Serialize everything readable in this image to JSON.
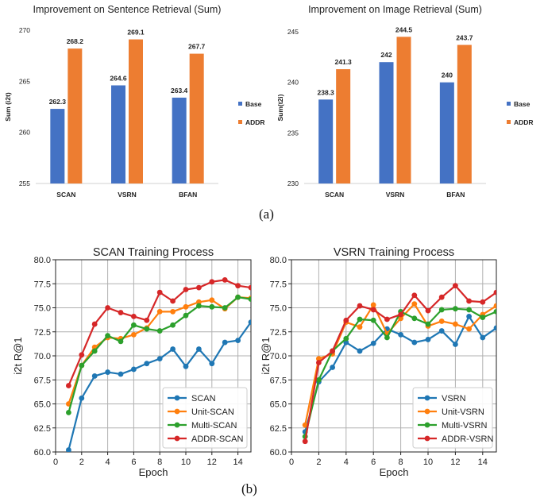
{
  "captions": {
    "a": "(a)",
    "b": "(b)"
  },
  "colors": {
    "base": "#4472C4",
    "addr_bar": "#ED7D31",
    "scan": "#1f77b4",
    "unit": "#ff7f0e",
    "multi": "#2ca02c",
    "addr": "#d62728",
    "grid": "#b0b0b0"
  },
  "chart_data": [
    {
      "type": "bar",
      "title": "Improvement on Sentence Retrieval (Sum)",
      "xlabel": "",
      "ylabel": "Sum (i2t)",
      "ylim": [
        255,
        270
      ],
      "yticks": [
        "255",
        "260",
        "265",
        "270"
      ],
      "categories": [
        "SCAN",
        "VSRN",
        "BFAN"
      ],
      "series": [
        {
          "name": "Base",
          "values": [
            262.3,
            264.6,
            263.4
          ],
          "labels": [
            "262.3",
            "264.6",
            "263.4"
          ]
        },
        {
          "name": "ADDR",
          "values": [
            268.2,
            269.1,
            267.7
          ],
          "labels": [
            "268.2",
            "269.1",
            "267.7"
          ]
        }
      ],
      "grid": false,
      "legend": "right"
    },
    {
      "type": "bar",
      "title": "Improvement on Image Retrieval (Sum)",
      "xlabel": "",
      "ylabel": "Sum(t2i)",
      "ylim": [
        230,
        245
      ],
      "yticks": [
        "230",
        "235",
        "240",
        "245"
      ],
      "categories": [
        "SCAN",
        "VSRN",
        "BFAN"
      ],
      "series": [
        {
          "name": "Base",
          "values": [
            238.3,
            242,
            240
          ],
          "labels": [
            "238.3",
            "242",
            "240"
          ]
        },
        {
          "name": "ADDR",
          "values": [
            241.3,
            244.5,
            243.7
          ],
          "labels": [
            "241.3",
            "244.5",
            "243.7"
          ]
        }
      ],
      "grid": false,
      "legend": "right"
    },
    {
      "type": "line",
      "title": "SCAN Training Process",
      "xlabel": "Epoch",
      "ylabel": "i2t R@1",
      "xlim": [
        0,
        15
      ],
      "ylim": [
        60,
        80
      ],
      "xticks": [
        "0",
        "2",
        "4",
        "6",
        "8",
        "10",
        "12",
        "14"
      ],
      "yticks": [
        "60.0",
        "62.5",
        "65.0",
        "67.5",
        "70.0",
        "72.5",
        "75.0",
        "77.5",
        "80.0"
      ],
      "x": [
        1,
        2,
        3,
        4,
        5,
        6,
        7,
        8,
        9,
        10,
        11,
        12,
        13,
        14,
        15
      ],
      "series": [
        {
          "name": "SCAN",
          "values": [
            60.2,
            65.6,
            67.9,
            68.3,
            68.1,
            68.6,
            69.2,
            69.7,
            70.7,
            68.9,
            70.7,
            69.2,
            71.4,
            71.6,
            73.5
          ]
        },
        {
          "name": "Unit-SCAN",
          "values": [
            65.0,
            69.0,
            70.9,
            71.9,
            71.8,
            72.2,
            72.9,
            74.6,
            74.6,
            75.1,
            75.6,
            75.8,
            74.9,
            76.1,
            76.0
          ]
        },
        {
          "name": "Multi-SCAN",
          "values": [
            64.1,
            69.0,
            70.5,
            72.1,
            71.5,
            73.2,
            72.8,
            72.6,
            73.2,
            74.2,
            75.2,
            75.1,
            75.0,
            76.1,
            75.9
          ]
        },
        {
          "name": "ADDR-SCAN",
          "values": [
            66.9,
            70.1,
            73.3,
            75.0,
            74.5,
            74.1,
            73.7,
            76.6,
            75.7,
            76.9,
            77.1,
            77.7,
            77.9,
            77.3,
            77.1
          ]
        }
      ],
      "grid": true,
      "legend": "lower-right"
    },
    {
      "type": "line",
      "title": "VSRN Training Process",
      "xlabel": "Epoch",
      "ylabel": "i2t R@1",
      "xlim": [
        0,
        15
      ],
      "ylim": [
        60,
        80
      ],
      "xticks": [
        "0",
        "2",
        "4",
        "6",
        "8",
        "10",
        "12",
        "14"
      ],
      "yticks": [
        "60.0",
        "62.5",
        "65.0",
        "67.5",
        "70.0",
        "72.5",
        "75.0",
        "77.5",
        "80.0"
      ],
      "x": [
        1,
        2,
        3,
        4,
        5,
        6,
        7,
        8,
        9,
        10,
        11,
        12,
        13,
        14,
        15
      ],
      "series": [
        {
          "name": "VSRN",
          "values": [
            62.1,
            67.3,
            68.8,
            71.4,
            70.5,
            71.3,
            72.8,
            72.2,
            71.4,
            71.7,
            72.6,
            71.2,
            74.1,
            71.9,
            72.9
          ]
        },
        {
          "name": "Unit-VSRN",
          "values": [
            62.8,
            69.7,
            70.2,
            73.5,
            73.0,
            75.3,
            72.3,
            73.9,
            75.4,
            73.1,
            73.6,
            73.3,
            72.8,
            74.3,
            75.2
          ]
        },
        {
          "name": "Multi-VSRN",
          "values": [
            61.6,
            67.5,
            70.5,
            71.8,
            73.8,
            73.7,
            71.9,
            74.6,
            73.9,
            73.3,
            74.8,
            74.9,
            74.8,
            74.0,
            74.6
          ]
        },
        {
          "name": "ADDR-VSRN",
          "values": [
            61.1,
            69.3,
            70.5,
            73.7,
            75.2,
            74.8,
            73.8,
            74.3,
            76.3,
            74.7,
            76.1,
            77.3,
            75.7,
            75.6,
            76.6
          ]
        }
      ],
      "grid": true,
      "legend": "lower-right"
    }
  ]
}
